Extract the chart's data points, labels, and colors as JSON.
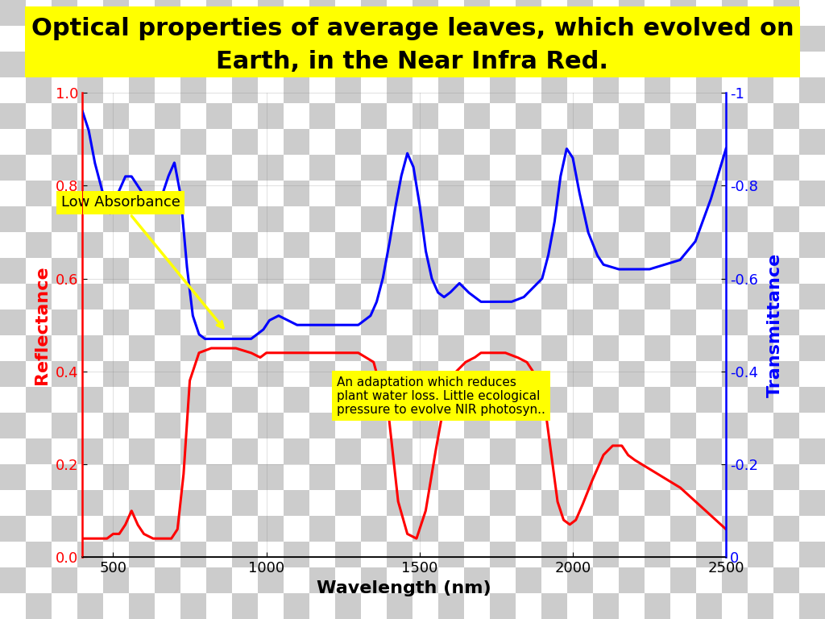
{
  "title_line1": "Optical properties of average leaves, which evolved on",
  "title_line2": "Earth, in the Near Infra Red.",
  "xlabel": "Wavelength (nm)",
  "ylabel_left": "Reflectance",
  "ylabel_right": "Transmittance",
  "xlim": [
    400,
    2500
  ],
  "ylim_left": [
    0,
    1
  ],
  "left_ticks": [
    0,
    0.2,
    0.4,
    0.6,
    0.8,
    1.0
  ],
  "right_ticks": [
    0.0,
    0.2,
    0.4,
    0.6,
    0.8,
    1.0
  ],
  "right_tick_labels": [
    "0",
    "-0.2",
    "-0.4",
    "-0.6",
    "-0.8",
    "-1"
  ],
  "annotation1_text": "Low Absorbance",
  "annotation2_text": "An adaptation which reduces\nplant water loss. Little ecological\npressure to evolve NIR photosyn..",
  "title_bg": "#ffff00",
  "annotation_bg": "#ffff00",
  "red_color": "#ff0000",
  "blue_color": "#0000ff",
  "title_fontsize": 22,
  "axis_label_fontsize": 16,
  "tick_fontsize": 13,
  "checker_size": 32,
  "checker_color1": "#cccccc",
  "checker_color2": "#ffffff"
}
